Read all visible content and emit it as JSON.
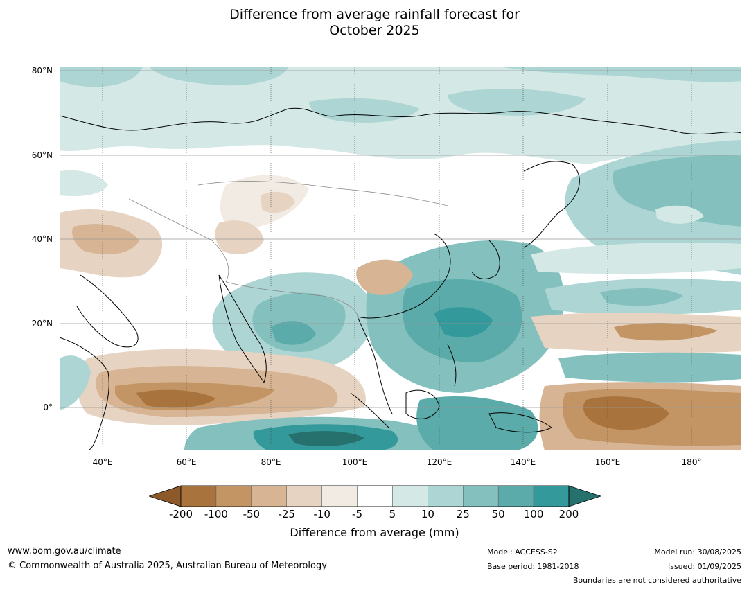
{
  "title_line1": "Difference from average rainfall forecast for",
  "title_line2": "October 2025",
  "lat_labels": [
    "80°N",
    "60°N",
    "40°N",
    "20°N",
    "0°"
  ],
  "lon_labels": [
    "40°E",
    "60°E",
    "80°E",
    "100°E",
    "120°E",
    "140°E",
    "160°E",
    "180°"
  ],
  "legend": {
    "title": "Difference from average (mm)",
    "ticks": [
      "-200",
      "-100",
      "-50",
      "-25",
      "-10",
      "-5",
      "5",
      "10",
      "25",
      "50",
      "100",
      "200"
    ],
    "colors": [
      "#8c5a2a",
      "#a8733c",
      "#c39564",
      "#d6b494",
      "#e6d3c1",
      "#f2ebe4",
      "#ffffff",
      "#d4e8e6",
      "#acd5d3",
      "#84c1be",
      "#5aabaa",
      "#33999a",
      "#26706e"
    ]
  },
  "footer": {
    "url": "www.bom.gov.au/climate",
    "copyright": "© Commonwealth of Australia 2025, Australian Bureau of Meteorology",
    "model": "Model: ACCESS-S2",
    "base_period": "Base period: 1981-2018",
    "model_run": "Model run: 30/08/2025",
    "issued": "Issued: 01/09/2025",
    "boundaries_note": "Boundaries are not considered authoritative"
  }
}
